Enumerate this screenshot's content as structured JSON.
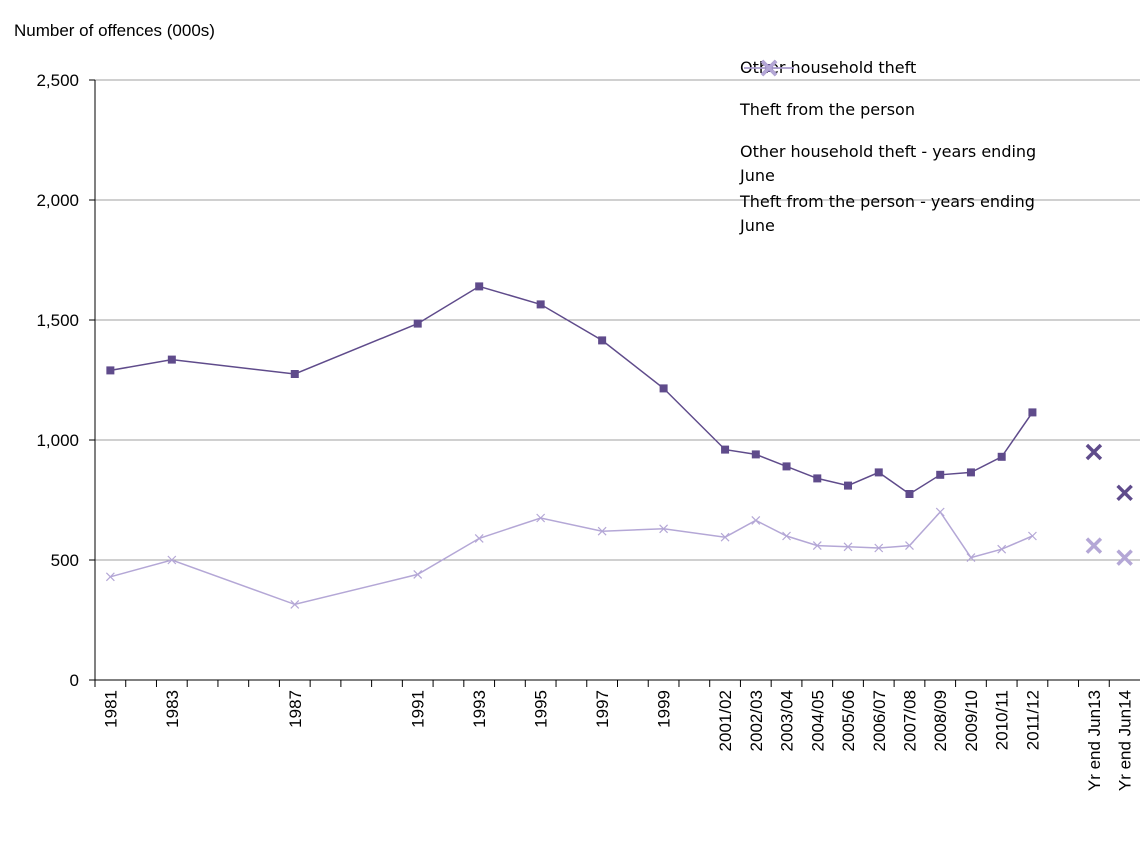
{
  "chart_data": {
    "type": "line",
    "y_axis_title": "Number of offences (000s)",
    "categories": [
      "1981",
      null,
      "1983",
      null,
      null,
      null,
      "1987",
      null,
      null,
      null,
      "1991",
      null,
      "1993",
      null,
      "1995",
      null,
      "1997",
      null,
      "1999",
      null,
      "2001/02",
      "2002/03",
      "2003/04",
      "2004/05",
      "2005/06",
      "2006/07",
      "2007/08",
      "2008/09",
      "2009/10",
      "2010/11",
      "2011/12",
      null,
      "Yr end Jun13",
      "Yr end Jun14"
    ],
    "connect_gaps": true,
    "series": [
      {
        "name": "Other household theft",
        "color": "#5f4b8b",
        "marker": "square",
        "line": true,
        "values": [
          1290,
          null,
          1335,
          null,
          null,
          null,
          1275,
          null,
          null,
          null,
          1485,
          null,
          1640,
          null,
          1565,
          null,
          1415,
          null,
          1215,
          null,
          960,
          940,
          890,
          840,
          810,
          865,
          775,
          855,
          865,
          930,
          1115,
          null,
          null,
          null
        ]
      },
      {
        "name": "Theft from the person",
        "color": "#b4a7d6",
        "marker": "x",
        "line": true,
        "values": [
          430,
          null,
          500,
          null,
          null,
          null,
          315,
          null,
          null,
          null,
          440,
          null,
          590,
          null,
          675,
          null,
          620,
          null,
          630,
          null,
          595,
          665,
          600,
          560,
          555,
          550,
          560,
          700,
          510,
          545,
          600,
          null,
          null,
          null
        ]
      },
      {
        "name": "Other household theft - years ending June",
        "color": "#5f4b8b",
        "marker": "bigx",
        "line": false,
        "values": [
          null,
          null,
          null,
          null,
          null,
          null,
          null,
          null,
          null,
          null,
          null,
          null,
          null,
          null,
          null,
          null,
          null,
          null,
          null,
          null,
          null,
          null,
          null,
          null,
          null,
          null,
          null,
          null,
          null,
          null,
          null,
          null,
          950,
          780
        ]
      },
      {
        "name": "Theft from the person - years ending June",
        "color": "#b4a7d6",
        "marker": "bigx",
        "line": false,
        "values": [
          null,
          null,
          null,
          null,
          null,
          null,
          null,
          null,
          null,
          null,
          null,
          null,
          null,
          null,
          null,
          null,
          null,
          null,
          null,
          null,
          null,
          null,
          null,
          null,
          null,
          null,
          null,
          null,
          null,
          null,
          null,
          null,
          560,
          510
        ]
      }
    ],
    "ylim": [
      0,
      2500
    ],
    "yticks": [
      0,
      500,
      {
        "value": 1000,
        "label": "1,000"
      },
      {
        "value": 1500,
        "label": "1,500"
      },
      {
        "value": 2000,
        "label": "2,000"
      },
      {
        "value": 2500,
        "label": "2,500"
      }
    ],
    "grid": true,
    "legend": "top-right"
  }
}
